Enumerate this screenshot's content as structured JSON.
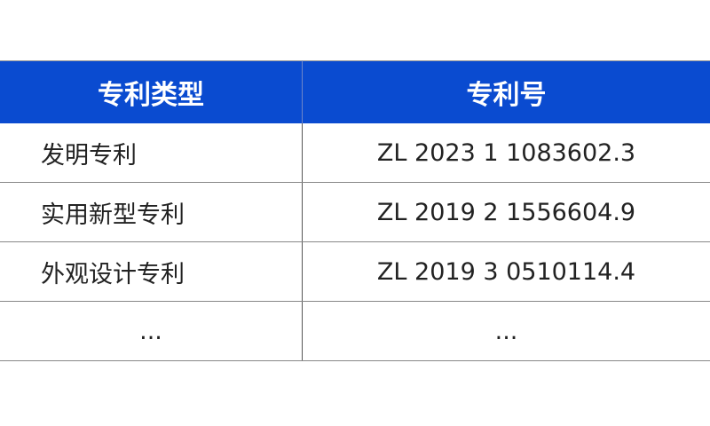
{
  "table": {
    "headers": [
      "专利类型",
      "专利号"
    ],
    "rows": [
      [
        "发明专利",
        "ZL 2023 1 1083602.3"
      ],
      [
        "实用新型专利",
        "ZL 2019 2 1556604.9"
      ],
      [
        "外观设计专利",
        "ZL 2019 3 0510114.4"
      ],
      [
        "...",
        "..."
      ]
    ],
    "header_color": "#0a4bd0"
  }
}
